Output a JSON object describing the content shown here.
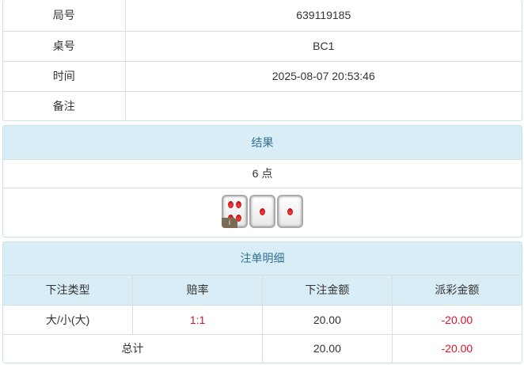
{
  "info": {
    "rows": [
      {
        "label": "局号",
        "value": "639119185"
      },
      {
        "label": "桌号",
        "value": "BC1"
      },
      {
        "label": "时间",
        "value": "2025-08-07 20:53:46"
      },
      {
        "label": "备注",
        "value": ""
      }
    ]
  },
  "result": {
    "title": "结果",
    "points": "6 点",
    "dice": [
      4,
      1,
      1
    ],
    "info_badge": "i"
  },
  "bets": {
    "title": "注单明细",
    "columns": [
      "下注类型",
      "赔率",
      "下注金额",
      "派彩金额"
    ],
    "rows": [
      {
        "type": "大/小(大)",
        "odds": "1:1",
        "amount": "20.00",
        "payout": "-20.00"
      }
    ],
    "total": {
      "label": "总计",
      "amount": "20.00",
      "payout": "-20.00"
    },
    "colors": {
      "negative": "#e0102a",
      "header_bg": "#d9edf7"
    }
  }
}
